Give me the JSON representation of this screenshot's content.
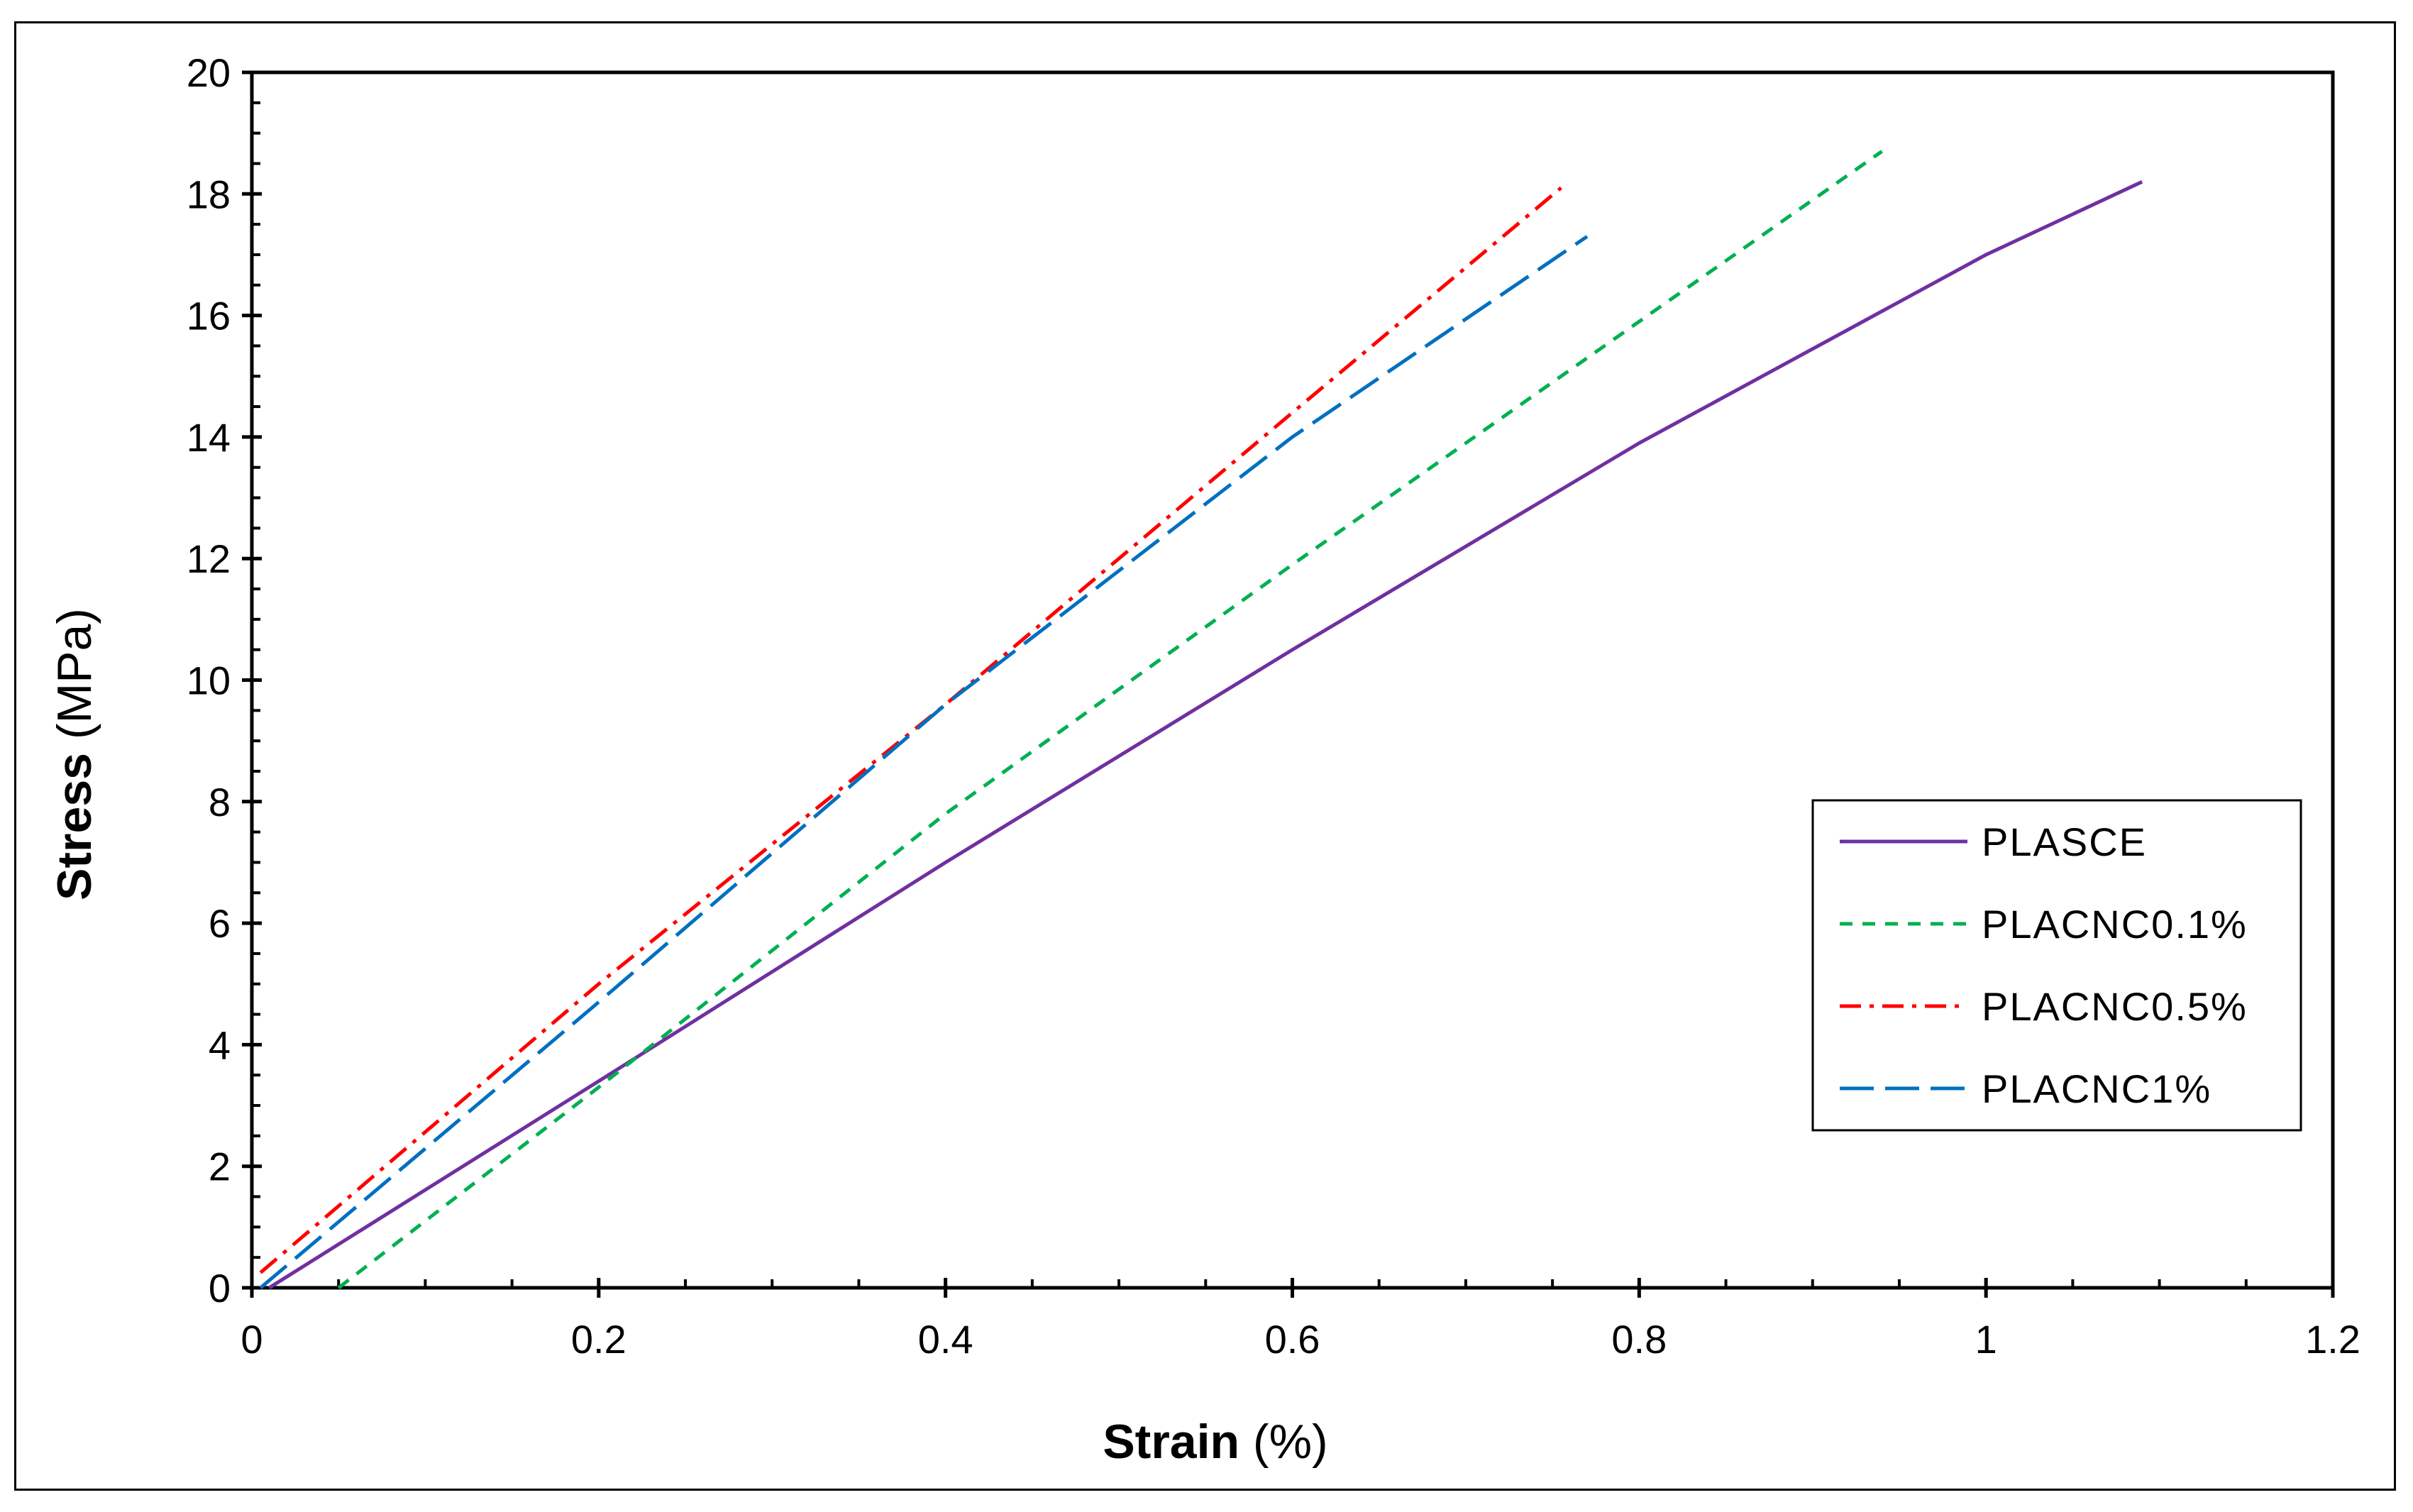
{
  "chart_data": {
    "type": "line",
    "title": "",
    "xlabel": {
      "bold": "Strain",
      "normal": " (%)"
    },
    "ylabel": {
      "bold": "Stress",
      "normal": " (MPa)"
    },
    "xlim": [
      0,
      1.2
    ],
    "ylim": [
      0,
      20
    ],
    "xticks": [
      "0",
      "0.2",
      "0.4",
      "0.6",
      "0.8",
      "1",
      "1.2"
    ],
    "yticks": [
      "0",
      "2",
      "4",
      "6",
      "8",
      "10",
      "12",
      "14",
      "16",
      "18",
      "20"
    ],
    "legend_position": "center-right",
    "series": [
      {
        "name": "PLASCE",
        "color": "#7030a0",
        "style": "solid",
        "x": [
          0.01,
          0.2,
          0.4,
          0.6,
          0.8,
          1.0,
          1.09
        ],
        "y": [
          0,
          3.4,
          7.0,
          10.5,
          13.9,
          17.0,
          18.2
        ]
      },
      {
        "name": "PLACNC0.1%",
        "color": "#00b050",
        "style": "dashed",
        "x": [
          0.05,
          0.2,
          0.4,
          0.6,
          0.8,
          0.94
        ],
        "y": [
          0,
          3.3,
          7.8,
          11.9,
          15.9,
          18.7
        ]
      },
      {
        "name": "PLACNC0.5%",
        "color": "#ff0000",
        "style": "dashdot",
        "x": [
          0.005,
          0.2,
          0.4,
          0.6,
          0.755
        ],
        "y": [
          0.25,
          5.0,
          9.6,
          14.4,
          18.1
        ]
      },
      {
        "name": "PLACNC1%",
        "color": "#0070c0",
        "style": "longdash",
        "x": [
          0.005,
          0.2,
          0.4,
          0.6,
          0.77
        ],
        "y": [
          0,
          4.7,
          9.6,
          14.0,
          17.3
        ]
      }
    ]
  }
}
